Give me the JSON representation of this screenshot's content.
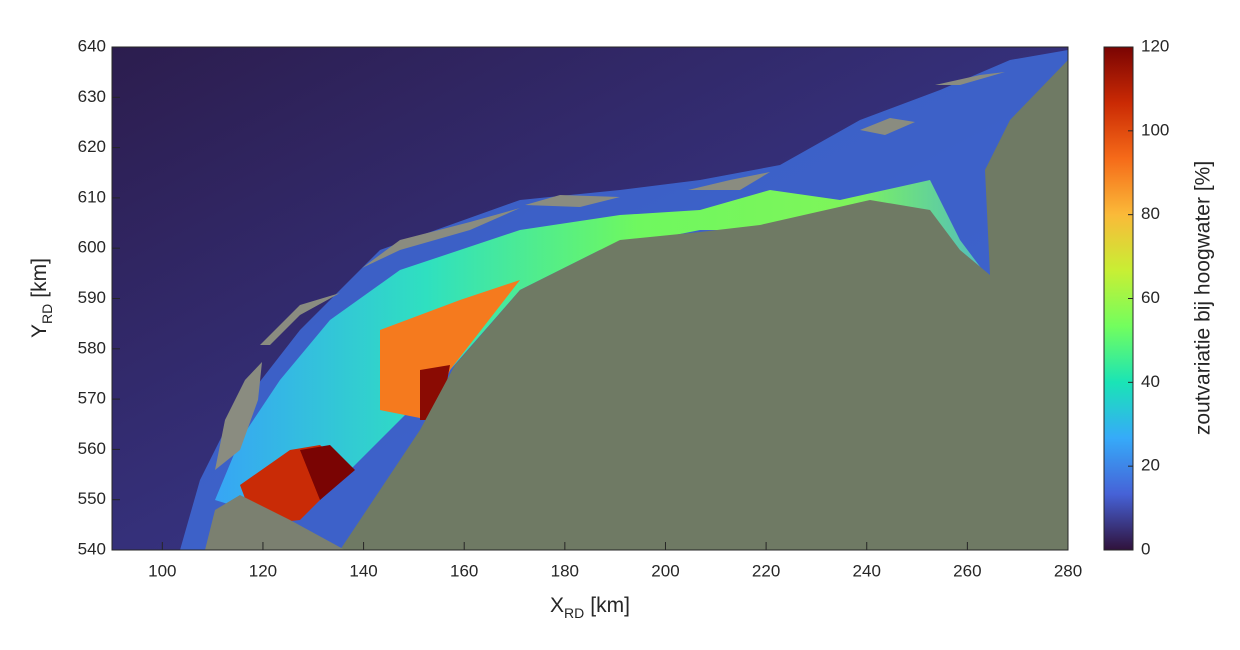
{
  "chart_data": {
    "type": "map",
    "xlabel": {
      "main": "X",
      "sub": "RD",
      "unit": "[km]"
    },
    "ylabel": {
      "main": "Y",
      "sub": "RD",
      "unit": "[km]"
    },
    "xlim": [
      90,
      280
    ],
    "ylim": [
      540,
      640
    ],
    "xticks": [
      100,
      120,
      140,
      160,
      180,
      200,
      220,
      240,
      260,
      280
    ],
    "yticks": [
      540,
      550,
      560,
      570,
      580,
      590,
      600,
      610,
      620,
      630,
      640
    ],
    "colorbar": {
      "label": "zoutvariatie bij hoogwater [%]",
      "clim": [
        0,
        120
      ],
      "ticks": [
        0,
        20,
        40,
        60,
        80,
        100,
        120
      ],
      "colormap": [
        "#30123b",
        "#4662d7",
        "#36aaf9",
        "#1ae4b6",
        "#72fe5e",
        "#c8ef34",
        "#faba39",
        "#f66b19",
        "#ca2a04",
        "#7a0403"
      ]
    }
  }
}
